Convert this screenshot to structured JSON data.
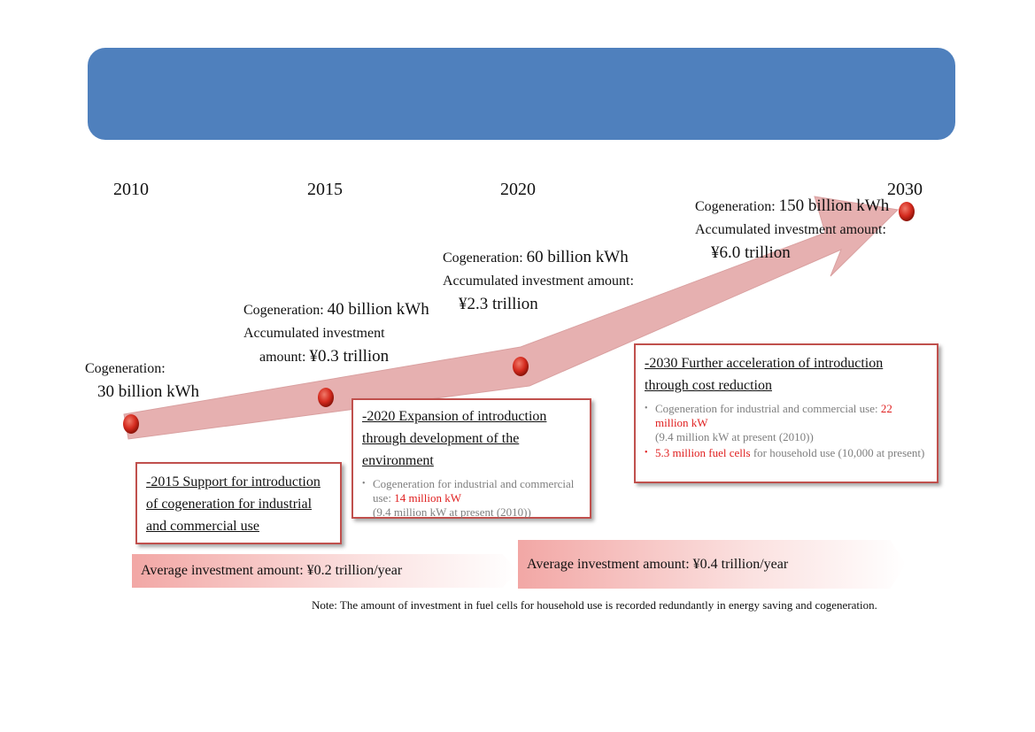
{
  "timeline": {
    "years": [
      "2010",
      "2015",
      "2020",
      "2030"
    ]
  },
  "milestones": {
    "m2010": {
      "line1": "Cogeneration:",
      "line2": "30 billion kWh"
    },
    "m2015": {
      "cogen_prefix": "Cogeneration:",
      "cogen_value": "40 billion kWh",
      "inv1": "Accumulated investment",
      "inv_prefix": "amount:",
      "inv_value": "¥0.3 trillion"
    },
    "m2020": {
      "cogen_prefix": "Cogeneration:",
      "cogen_value": "60 billion kWh",
      "inv1": "Accumulated investment amount:",
      "inv_value": "¥2.3 trillion"
    },
    "m2030": {
      "cogen_prefix": "Cogeneration:",
      "cogen_value": "150 billion kWh",
      "inv1": "Accumulated investment amount:",
      "inv_value": "¥6.0 trillion"
    }
  },
  "boxes": {
    "b2015": {
      "title": "-2015 Support for introduction of cogeneration for industrial and commercial use"
    },
    "b2020": {
      "title": "-2020 Expansion of introduction through development of the environment",
      "bullet1_text": "Cogeneration for industrial and commercial use: ",
      "bullet1_red": "14 million kW",
      "bullet1_sub": "(9.4 million kW at present (2010))"
    },
    "b2030": {
      "title": "-2030 Further acceleration of introduction through cost reduction",
      "bullet1_text": "Cogeneration for industrial and commercial use: ",
      "bullet1_red": "22 million kW",
      "bullet1_sub": "(9.4 million kW at present (2010))",
      "bullet2_red": "5.3 million fuel cells",
      "bullet2_text": " for household use (10,000 at present)"
    }
  },
  "bands": {
    "first": "Average investment amount: ¥0.2 trillion/year",
    "second": "Average investment amount: ¥0.4 trillion/year"
  },
  "note": "Note: The amount of investment in fuel cells for household use is recorded redundantly in energy saving and cogeneration.",
  "colors": {
    "banner": "#4f80bd",
    "arrow": "#e6b0b0",
    "dot": "#d42a1e",
    "box_border": "#c0504d",
    "highlight": "#e02020"
  }
}
